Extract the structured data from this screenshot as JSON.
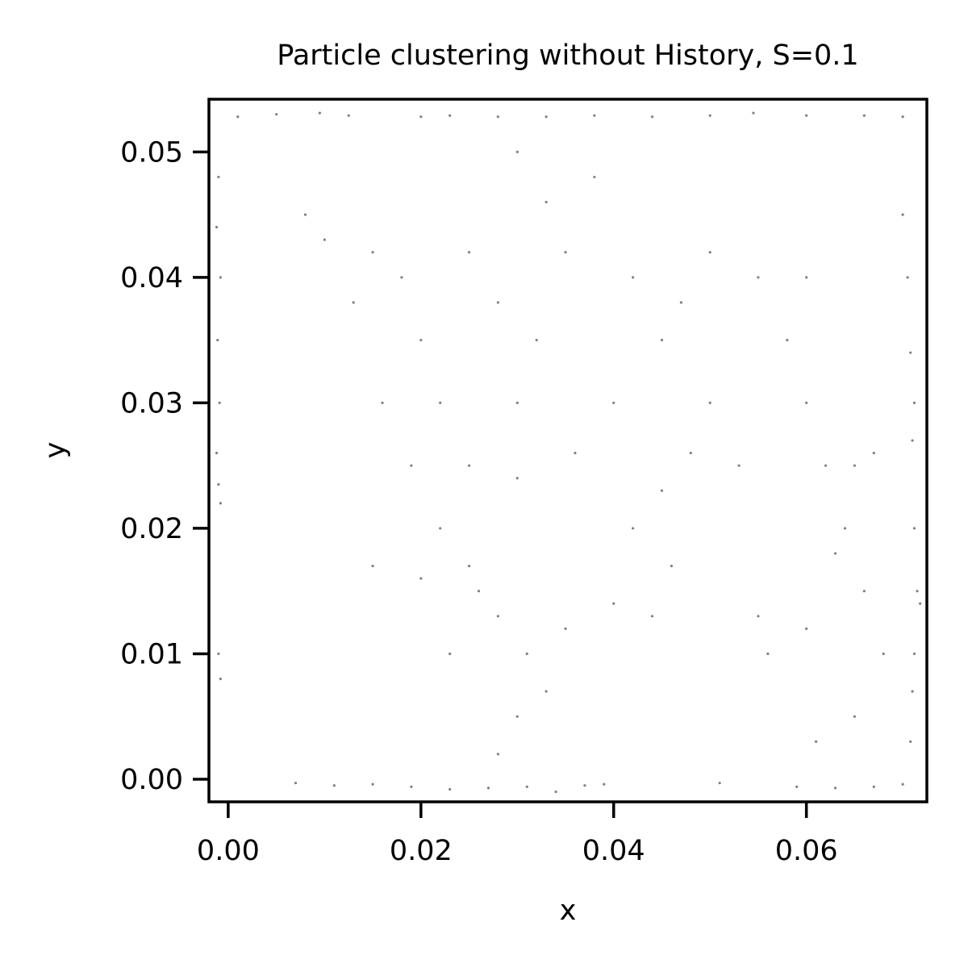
{
  "chart_data": {
    "type": "scatter",
    "title": "Particle clustering without History, S=0.1",
    "xlabel": "x",
    "ylabel": "y",
    "xlim": [
      -0.002,
      0.0725
    ],
    "ylim": [
      -0.0018,
      0.0542
    ],
    "xticks": [
      0.0,
      0.02,
      0.04,
      0.06
    ],
    "xtick_labels": [
      "0.00",
      "0.02",
      "0.04",
      "0.06"
    ],
    "yticks": [
      0.0,
      0.01,
      0.02,
      0.03,
      0.04,
      0.05
    ],
    "ytick_labels": [
      "0.00",
      "0.01",
      "0.02",
      "0.03",
      "0.04",
      "0.05"
    ],
    "grid": false,
    "legend": "none",
    "point_color": "#808080",
    "series": [
      {
        "points": [
          [
            0.001,
            0.0528
          ],
          [
            0.005,
            0.053
          ],
          [
            0.0095,
            0.0531
          ],
          [
            0.0125,
            0.0529
          ],
          [
            0.02,
            0.0528
          ],
          [
            0.023,
            0.0529
          ],
          [
            0.028,
            0.0528
          ],
          [
            0.033,
            0.0528
          ],
          [
            0.038,
            0.0529
          ],
          [
            0.044,
            0.0528
          ],
          [
            0.05,
            0.0529
          ],
          [
            0.0545,
            0.0531
          ],
          [
            0.06,
            0.0529
          ],
          [
            0.066,
            0.0529
          ],
          [
            0.07,
            0.0528
          ],
          [
            -0.001,
            0.048
          ],
          [
            -0.0012,
            0.044
          ],
          [
            -0.0008,
            0.04
          ],
          [
            -0.0011,
            0.035
          ],
          [
            -0.0009,
            0.03
          ],
          [
            -0.0012,
            0.026
          ],
          [
            -0.001,
            0.0235
          ],
          [
            -0.0008,
            0.022
          ],
          [
            -0.001,
            0.01
          ],
          [
            -0.0008,
            0.008
          ],
          [
            0.07,
            0.045
          ],
          [
            0.0705,
            0.04
          ],
          [
            0.0708,
            0.034
          ],
          [
            0.0712,
            0.03
          ],
          [
            0.071,
            0.027
          ],
          [
            0.0712,
            0.02
          ],
          [
            0.0715,
            0.015
          ],
          [
            0.0718,
            0.014
          ],
          [
            0.0712,
            0.01
          ],
          [
            0.071,
            0.007
          ],
          [
            0.0708,
            0.003
          ],
          [
            0.007,
            -0.0003
          ],
          [
            0.011,
            -0.0005
          ],
          [
            0.015,
            -0.0004
          ],
          [
            0.019,
            -0.0006
          ],
          [
            0.023,
            -0.0008
          ],
          [
            0.027,
            -0.0007
          ],
          [
            0.031,
            -0.0006
          ],
          [
            0.034,
            -0.001
          ],
          [
            0.037,
            -0.0005
          ],
          [
            0.039,
            -0.0004
          ],
          [
            0.051,
            -0.0003
          ],
          [
            0.059,
            -0.0006
          ],
          [
            0.063,
            -0.0007
          ],
          [
            0.067,
            -0.0006
          ],
          [
            0.07,
            -0.0004
          ],
          [
            0.03,
            0.03
          ],
          [
            0.032,
            0.035
          ],
          [
            0.028,
            0.038
          ],
          [
            0.035,
            0.042
          ],
          [
            0.025,
            0.042
          ],
          [
            0.033,
            0.046
          ],
          [
            0.038,
            0.048
          ],
          [
            0.03,
            0.05
          ],
          [
            0.042,
            0.04
          ],
          [
            0.045,
            0.035
          ],
          [
            0.04,
            0.03
          ],
          [
            0.036,
            0.026
          ],
          [
            0.03,
            0.024
          ],
          [
            0.025,
            0.025
          ],
          [
            0.022,
            0.03
          ],
          [
            0.02,
            0.035
          ],
          [
            0.018,
            0.04
          ],
          [
            0.015,
            0.042
          ],
          [
            0.01,
            0.043
          ],
          [
            0.008,
            0.045
          ],
          [
            0.013,
            0.038
          ],
          [
            0.016,
            0.03
          ],
          [
            0.019,
            0.025
          ],
          [
            0.022,
            0.02
          ],
          [
            0.025,
            0.017
          ],
          [
            0.028,
            0.013
          ],
          [
            0.031,
            0.01
          ],
          [
            0.033,
            0.007
          ],
          [
            0.03,
            0.005
          ],
          [
            0.028,
            0.002
          ],
          [
            0.026,
            0.015
          ],
          [
            0.02,
            0.016
          ],
          [
            0.015,
            0.017
          ],
          [
            0.023,
            0.01
          ],
          [
            0.035,
            0.012
          ],
          [
            0.04,
            0.014
          ],
          [
            0.044,
            0.013
          ],
          [
            0.046,
            0.017
          ],
          [
            0.042,
            0.02
          ],
          [
            0.045,
            0.023
          ],
          [
            0.048,
            0.026
          ],
          [
            0.05,
            0.03
          ],
          [
            0.047,
            0.038
          ],
          [
            0.05,
            0.042
          ],
          [
            0.055,
            0.04
          ],
          [
            0.058,
            0.035
          ],
          [
            0.06,
            0.03
          ],
          [
            0.062,
            0.025
          ],
          [
            0.064,
            0.02
          ],
          [
            0.066,
            0.015
          ],
          [
            0.068,
            0.01
          ],
          [
            0.065,
            0.005
          ],
          [
            0.061,
            0.003
          ],
          [
            0.056,
            0.01
          ],
          [
            0.055,
            0.013
          ],
          [
            0.06,
            0.012
          ],
          [
            0.065,
            0.025
          ],
          [
            0.067,
            0.026
          ],
          [
            0.063,
            0.018
          ],
          [
            0.053,
            0.025
          ],
          [
            0.06,
            0.04
          ]
        ]
      }
    ]
  }
}
